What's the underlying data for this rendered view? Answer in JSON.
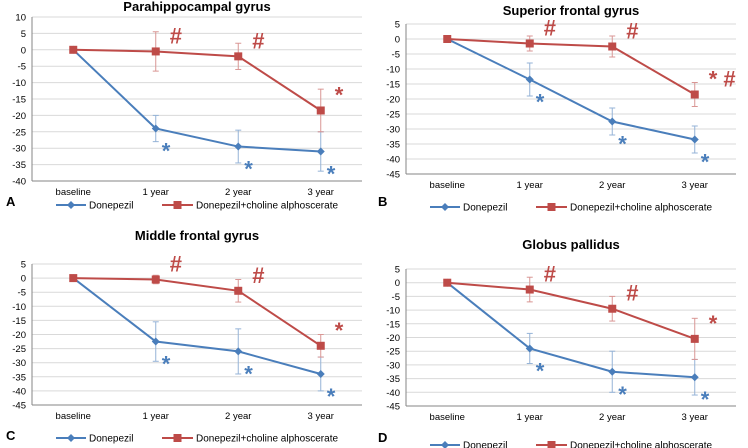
{
  "colors": {
    "donepezil": "#4a7ebb",
    "combo": "#be4b48",
    "donepezil_error": "#95b3d7",
    "combo_error": "#d99694",
    "grid": "#d9d9d9",
    "axis": "#868686"
  },
  "chart_data": [
    {
      "panel": "A",
      "type": "line",
      "title": "Parahippocampal gyrus",
      "categories": [
        "baseline",
        "1 year",
        "2 year",
        "3 year"
      ],
      "ylim": [
        -40,
        10
      ],
      "yticks": [
        10,
        5,
        0,
        -5,
        -10,
        -15,
        -20,
        -25,
        -30,
        -35,
        -40
      ],
      "series": [
        {
          "name": "Donepezil",
          "values": [
            0,
            -24,
            -29.5,
            -31
          ],
          "errors": [
            0,
            4,
            5,
            6
          ],
          "annotations": [
            "",
            "*",
            "*",
            "*"
          ]
        },
        {
          "name": "Donepezil+choline alphoscerate",
          "values": [
            0,
            -0.5,
            -2,
            -18.5
          ],
          "errors": [
            0,
            6,
            4,
            6.5
          ],
          "annotations": [
            "",
            "#",
            "#",
            "*"
          ]
        }
      ]
    },
    {
      "panel": "B",
      "type": "line",
      "title": "Superior frontal gyrus",
      "categories": [
        "baseline",
        "1 year",
        "2 year",
        "3 year"
      ],
      "ylim": [
        -45,
        5
      ],
      "yticks": [
        5,
        0,
        -5,
        -10,
        -15,
        -20,
        -25,
        -30,
        -35,
        -40,
        -45
      ],
      "series": [
        {
          "name": "Donepezil",
          "values": [
            0,
            -13.5,
            -27.5,
            -33.5
          ],
          "errors": [
            0,
            5.5,
            4.5,
            4.5
          ],
          "annotations": [
            "",
            "*",
            "*",
            "*"
          ]
        },
        {
          "name": "Donepezil+choline alphoscerate",
          "values": [
            0,
            -1.5,
            -2.5,
            -18.5
          ],
          "errors": [
            0,
            2.5,
            3.5,
            4
          ],
          "annotations": [
            "",
            "#",
            "#",
            "* #"
          ]
        }
      ]
    },
    {
      "panel": "C",
      "type": "line",
      "title": "Middle frontal gyrus",
      "categories": [
        "baseline",
        "1 year",
        "2 year",
        "3 year"
      ],
      "ylim": [
        -45,
        5
      ],
      "yticks": [
        5,
        0,
        -5,
        -10,
        -15,
        -20,
        -25,
        -30,
        -35,
        -40,
        -45
      ],
      "series": [
        {
          "name": "Donepezil",
          "values": [
            0,
            -22.5,
            -26,
            -34
          ],
          "errors": [
            0,
            7,
            8,
            6
          ],
          "annotations": [
            "",
            "*",
            "*",
            "*"
          ]
        },
        {
          "name": "Donepezil+choline alphoscerate",
          "values": [
            0,
            -0.5,
            -4.5,
            -24
          ],
          "errors": [
            0,
            1.5,
            4,
            4
          ],
          "annotations": [
            "",
            "#",
            "#",
            "*"
          ]
        }
      ]
    },
    {
      "panel": "D",
      "type": "line",
      "title": "Globus pallidus",
      "categories": [
        "baseline",
        "1 year",
        "2 year",
        "3 year"
      ],
      "ylim": [
        -45,
        5
      ],
      "yticks": [
        5,
        0,
        -5,
        -10,
        -15,
        -20,
        -25,
        -30,
        -35,
        -40,
        -45
      ],
      "series": [
        {
          "name": "Donepezil",
          "values": [
            0,
            -24,
            -32.5,
            -34.5
          ],
          "errors": [
            0,
            5.5,
            7.5,
            6.5
          ],
          "annotations": [
            "",
            "*",
            "*",
            "*"
          ]
        },
        {
          "name": "Donepezil+choline alphoscerate",
          "values": [
            0,
            -2.5,
            -9.5,
            -20.5
          ],
          "errors": [
            0,
            4.5,
            4.5,
            7.5
          ],
          "annotations": [
            "",
            "#",
            "#",
            "*"
          ]
        }
      ]
    }
  ]
}
